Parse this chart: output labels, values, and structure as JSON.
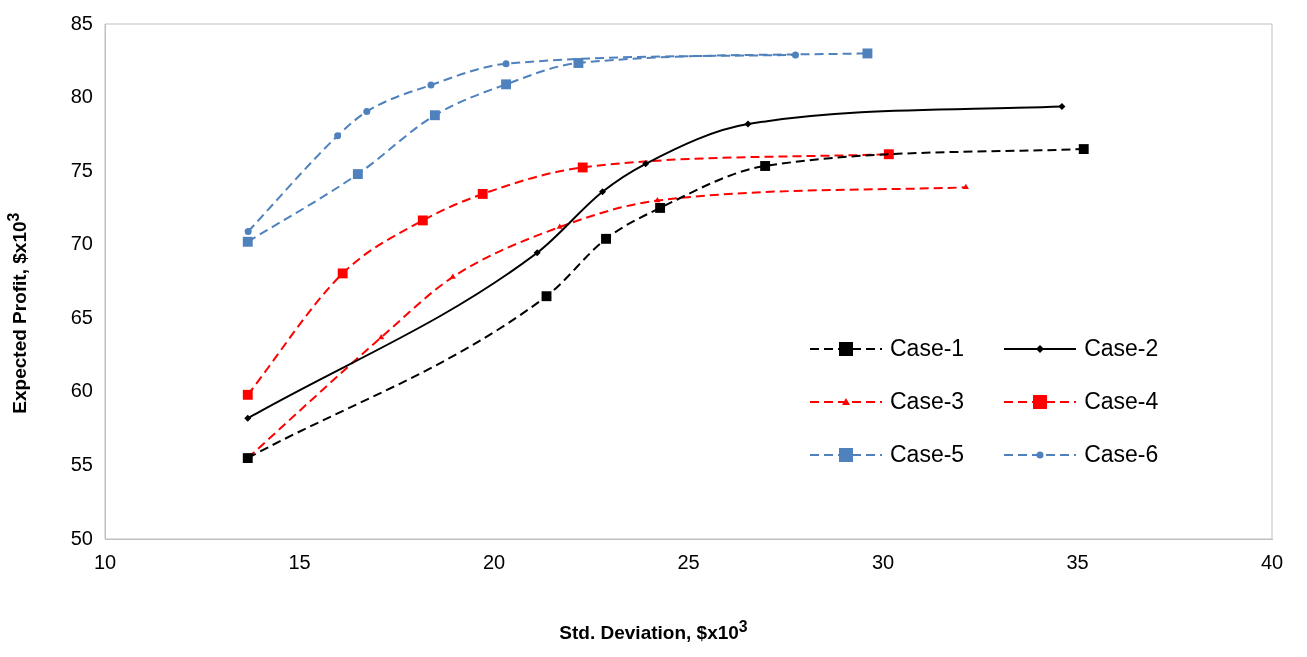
{
  "chart_data": {
    "type": "line",
    "xlabel": "Std. Deviation, $x10$^{3}$",
    "ylabel": "Expected Profit, $x10$^{3}$",
    "xlim": [
      10,
      40
    ],
    "xticks": [
      10,
      15,
      20,
      25,
      30,
      35,
      40
    ],
    "ylim": [
      50,
      85
    ],
    "yticks": [
      50,
      55,
      60,
      65,
      70,
      75,
      80,
      85
    ],
    "grid": false,
    "legend": "bottom right",
    "series": [
      {
        "name": "Case-1",
        "color": "#000000",
        "marker": "square",
        "line_style": "dashed",
        "x": [
          13.67,
          21.35,
          22.88,
          24.27,
          26.97,
          35.16
        ],
        "values": [
          55.5,
          66.5,
          70.4,
          72.5,
          75.35,
          76.5
        ]
      },
      {
        "name": "Case-2",
        "color": "#000000",
        "marker": "diamond",
        "line_style": "solid",
        "x": [
          13.67,
          21.11,
          22.79,
          23.9,
          26.53,
          34.6
        ],
        "values": [
          58.2,
          69.45,
          73.6,
          75.5,
          78.2,
          79.4
        ]
      },
      {
        "name": "Case-3",
        "color": "#ff0000",
        "marker": "triangle",
        "line_style": "dashed",
        "x": [
          13.67,
          17.1,
          18.94,
          21.69,
          24.2,
          32.13
        ],
        "values": [
          55.5,
          63.7,
          67.8,
          71.2,
          73.0,
          73.9
        ]
      },
      {
        "name": "Case-4",
        "color": "#ff0000",
        "marker": "square",
        "line_style": "dashed",
        "x": [
          13.67,
          16.11,
          18.17,
          19.71,
          22.28,
          30.15
        ],
        "values": [
          59.8,
          68.05,
          71.65,
          73.45,
          75.25,
          76.15
        ]
      },
      {
        "name": "Case-5",
        "color": "#4f81bd",
        "marker": "square",
        "line_style": "dashed",
        "x": [
          13.67,
          16.5,
          18.48,
          20.31,
          22.17,
          29.6
        ],
        "values": [
          70.2,
          74.8,
          78.8,
          80.9,
          82.35,
          83.0
        ]
      },
      {
        "name": "Case-6",
        "color": "#4f81bd",
        "marker": "circle",
        "line_style": "dashed",
        "x": [
          13.68,
          15.98,
          16.73,
          18.38,
          20.31,
          27.75
        ],
        "values": [
          70.9,
          77.4,
          79.05,
          80.85,
          82.3,
          82.9
        ]
      }
    ]
  }
}
